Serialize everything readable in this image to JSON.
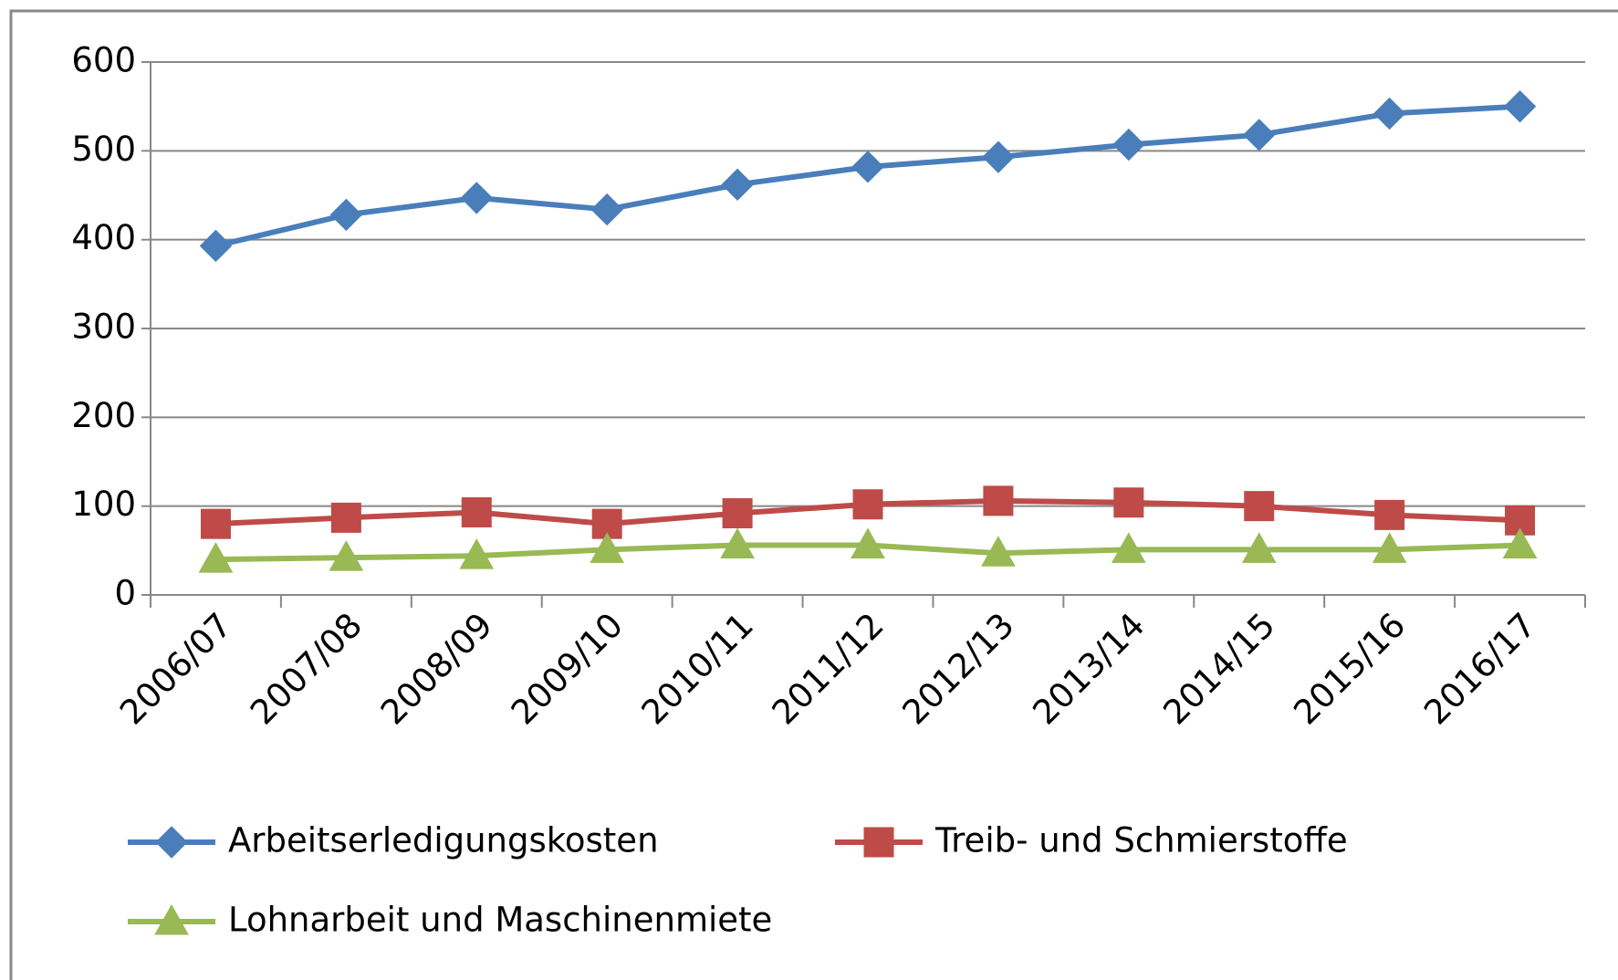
{
  "chart_data": {
    "type": "line",
    "categories": [
      "2006/07",
      "2007/08",
      "2008/09",
      "2009/10",
      "2010/11",
      "2011/12",
      "2012/13",
      "2013/14",
      "2014/15",
      "2015/16",
      "2016/17"
    ],
    "series": [
      {
        "name": "Arbeitserledigungskosten",
        "color": "#4a7ebb",
        "marker": "diamond",
        "values": [
          393,
          428,
          447,
          434,
          462,
          482,
          493,
          507,
          518,
          542,
          550
        ]
      },
      {
        "name": "Treib- und Schmierstoffe",
        "color": "#be4b48",
        "marker": "square",
        "values": [
          80,
          87,
          93,
          80,
          92,
          102,
          106,
          104,
          100,
          90,
          84
        ]
      },
      {
        "name": "Lohnarbeit und Maschinenmiete",
        "color": "#98b954",
        "marker": "triangle",
        "values": [
          40,
          42,
          44,
          51,
          56,
          56,
          47,
          51,
          51,
          51,
          56
        ]
      }
    ],
    "ylim": [
      0,
      600
    ],
    "yticks": [
      0,
      100,
      200,
      300,
      400,
      500,
      600
    ],
    "grid": true,
    "legend": "bottom"
  }
}
